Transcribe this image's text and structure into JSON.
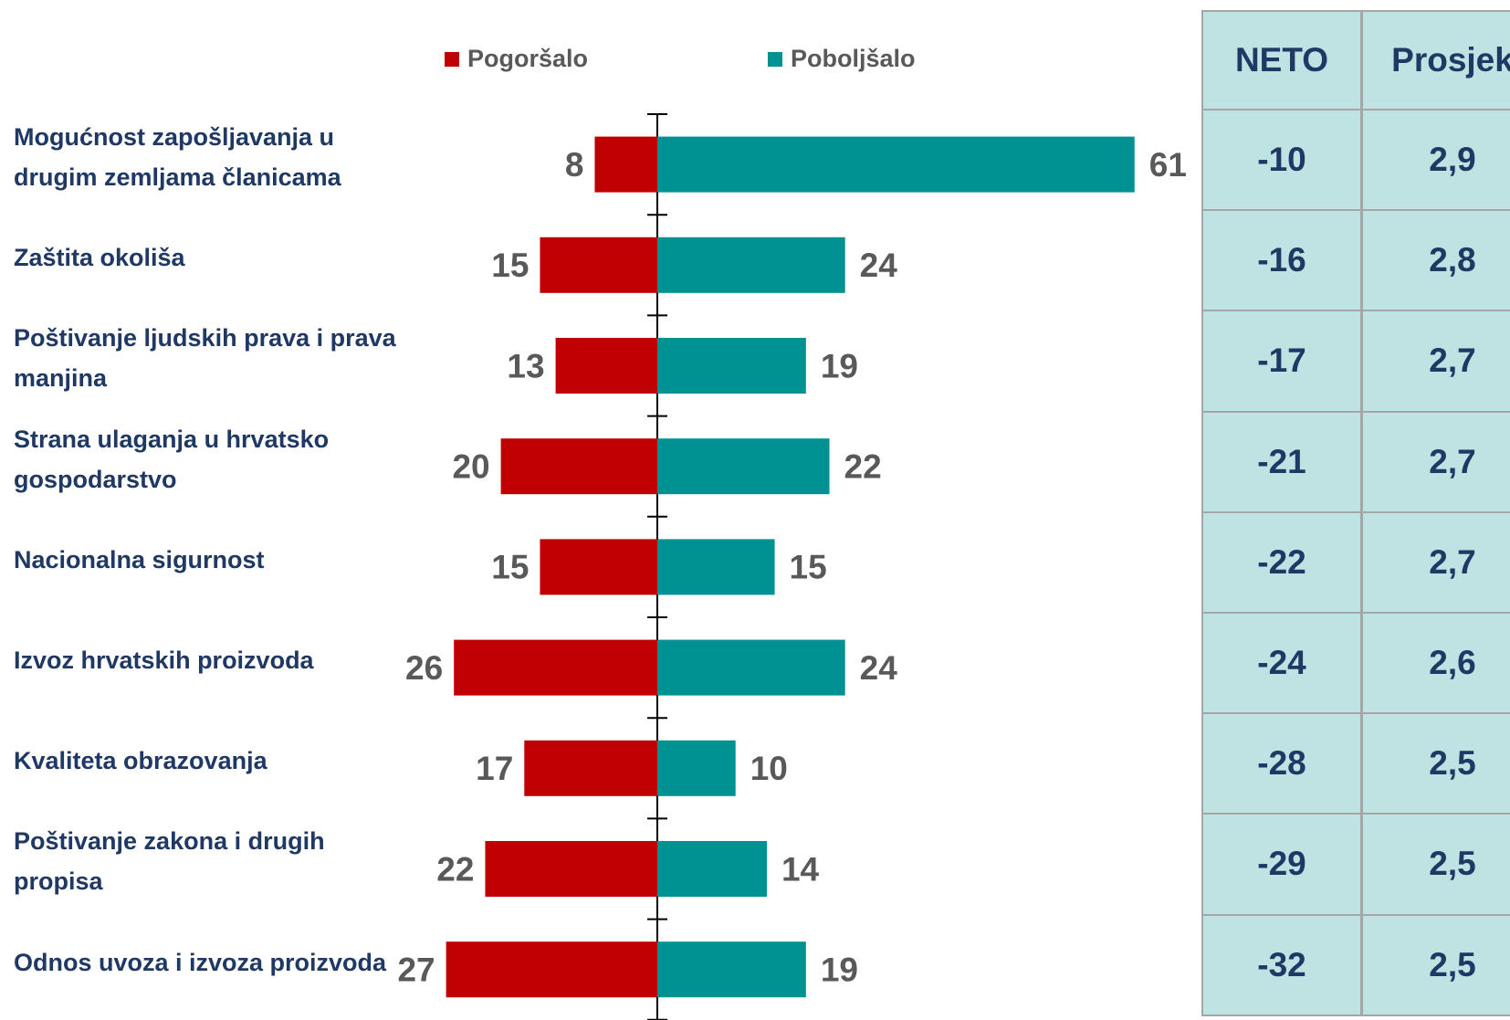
{
  "chart_data": {
    "type": "diverging-bar",
    "categories": [
      "Mogućnost zapošljavanja u drugim zemljama članicama",
      "Zaštita okoliša",
      "Poštivanje ljudskih prava i prava manjina",
      "Strana ulaganja u hrvatsko gospodarstvo",
      "Nacionalna sigurnost",
      "Izvoz hrvatskih proizvoda",
      "Kvaliteta obrazovanja",
      "Poštivanje zakona i drugih propisa",
      "Odnos uvoza i izvoza proizvoda"
    ],
    "series": [
      {
        "name": "Pogoršalo",
        "color": "#c00000",
        "side": "left",
        "values": [
          8,
          15,
          13,
          20,
          15,
          26,
          17,
          22,
          27
        ]
      },
      {
        "name": "Poboljšalo",
        "color": "#009193",
        "side": "right",
        "values": [
          61,
          24,
          19,
          22,
          15,
          24,
          10,
          14,
          19
        ]
      }
    ]
  },
  "table": {
    "headers": [
      "NETO",
      "Prosjek"
    ],
    "rows": [
      [
        -10,
        "2,9"
      ],
      [
        -16,
        "2,8"
      ],
      [
        -17,
        "2,7"
      ],
      [
        -21,
        "2,7"
      ],
      [
        -22,
        "2,7"
      ],
      [
        -24,
        "2,6"
      ],
      [
        -28,
        "2,5"
      ],
      [
        -29,
        "2,5"
      ],
      [
        -32,
        "2,5"
      ]
    ]
  }
}
